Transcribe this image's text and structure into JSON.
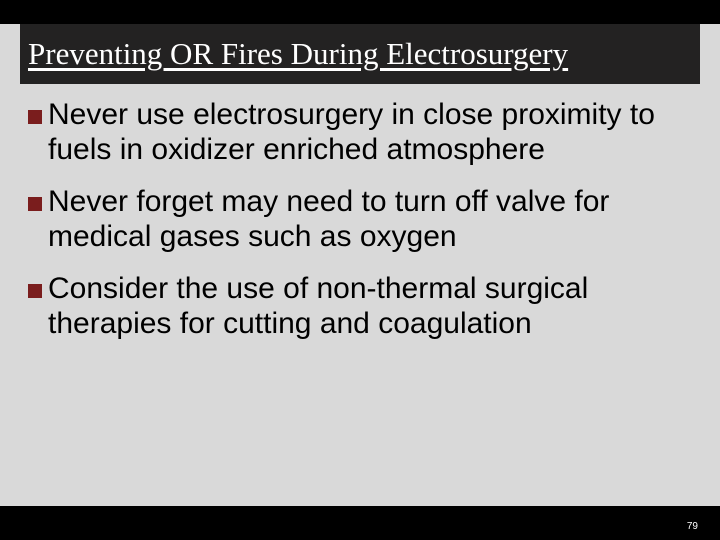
{
  "slide": {
    "title": "Preventing OR Fires During Electrosurgery",
    "bullets": [
      "Never use electrosurgery in close proximity to fuels in oxidizer enriched atmosphere",
      "Never forget may need to turn off valve for medical gases such as oxygen",
      "Consider the use of non-thermal surgical therapies for cutting and coagulation"
    ],
    "page_number": "79"
  },
  "style": {
    "slide_width": 720,
    "slide_height": 540,
    "background_color": "#d9d9d9",
    "outer_background": "#000000",
    "title_bar_color": "#232222",
    "title_font_family": "Times New Roman",
    "title_font_size": 31,
    "title_color": "#ffffff",
    "title_underline": true,
    "body_font_family": "Arial",
    "body_font_size": 30,
    "body_color": "#000000",
    "bullet_marker_color": "#7a1d1d",
    "bullet_marker_size": 14,
    "footer_bar_color": "#000000",
    "page_number_color": "#ffffff",
    "page_number_font_size": 10
  }
}
